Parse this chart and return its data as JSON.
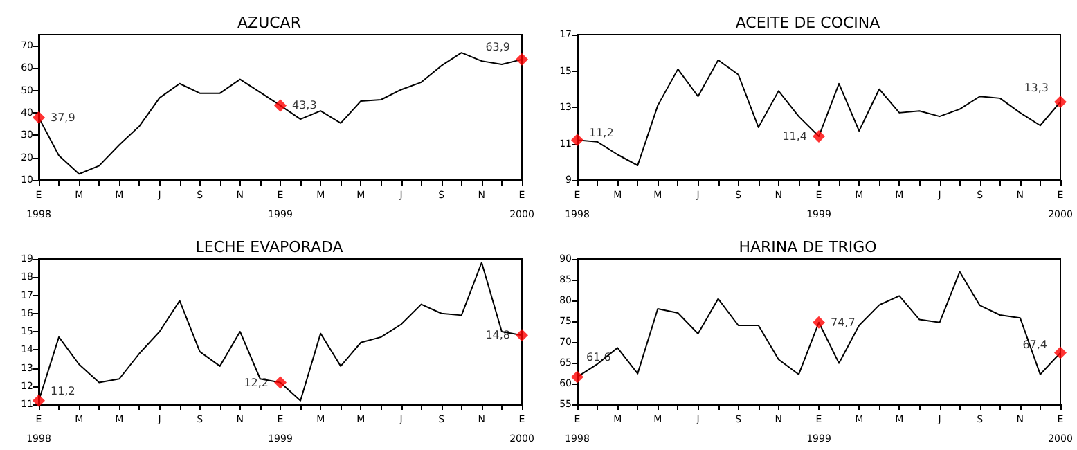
{
  "chart_data": [
    {
      "type": "line",
      "title": "AZUCAR",
      "categories": [
        "E\n1998",
        null,
        "M",
        null,
        "M",
        null,
        "J",
        null,
        "S",
        null,
        "N",
        null,
        "E\n1999",
        null,
        "M",
        null,
        "M",
        null,
        "J",
        null,
        "S",
        null,
        "N",
        null,
        "E\n2000"
      ],
      "ylim": [
        10,
        75
      ],
      "yticks": [
        10,
        20,
        30,
        40,
        50,
        60,
        70
      ],
      "grid": false,
      "series": [
        {
          "type": "line",
          "color": "#000000",
          "marker": "none",
          "values": [
            37.9,
            20.9,
            12.7,
            16.4,
            25.7,
            34.1,
            46.7,
            53.1,
            48.8,
            48.8,
            55.0,
            49.2,
            43.3,
            37.2,
            40.9,
            35.4,
            45.3,
            45.9,
            50.4,
            53.7,
            61.1,
            66.9,
            63.2,
            61.7,
            63.9
          ]
        },
        {
          "type": "scatter",
          "color": "#ff0000",
          "marker": "diamond",
          "values": [
            37.9,
            null,
            null,
            null,
            null,
            null,
            null,
            null,
            null,
            null,
            null,
            null,
            43.3,
            null,
            null,
            null,
            null,
            null,
            null,
            null,
            null,
            null,
            null,
            null,
            63.9
          ],
          "value_labels": [
            "37,9",
            null,
            null,
            null,
            null,
            null,
            null,
            null,
            null,
            null,
            null,
            null,
            "43,3",
            null,
            null,
            null,
            null,
            null,
            null,
            null,
            null,
            null,
            null,
            null,
            "63,9"
          ]
        }
      ]
    },
    {
      "type": "line",
      "title": "ACEITE DE COCINA",
      "categories": [
        "E\n1998",
        null,
        "M",
        null,
        "M",
        null,
        "J",
        null,
        "S",
        null,
        "N",
        null,
        "E\n1999",
        null,
        "M",
        null,
        "M",
        null,
        "J",
        null,
        "S",
        null,
        "N",
        null,
        "E\n2000"
      ],
      "ylim": [
        9,
        17
      ],
      "yticks": [
        9,
        11,
        13,
        15,
        17
      ],
      "grid": false,
      "series": [
        {
          "type": "line",
          "color": "#000000",
          "marker": "none",
          "values": [
            11.2,
            11.1,
            10.4,
            9.8,
            13.1,
            15.1,
            13.6,
            15.6,
            14.8,
            11.9,
            13.9,
            12.5,
            11.4,
            14.3,
            11.7,
            14.0,
            12.7,
            12.8,
            12.5,
            12.9,
            13.6,
            13.5,
            12.7,
            12.0,
            13.3
          ]
        },
        {
          "type": "scatter",
          "color": "#ff0000",
          "marker": "diamond",
          "values": [
            11.2,
            null,
            null,
            null,
            null,
            null,
            null,
            null,
            null,
            null,
            null,
            null,
            11.4,
            null,
            null,
            null,
            null,
            null,
            null,
            null,
            null,
            null,
            null,
            null,
            13.3
          ],
          "value_labels": [
            "11,2",
            null,
            null,
            null,
            null,
            null,
            null,
            null,
            null,
            null,
            null,
            null,
            "11,4",
            null,
            null,
            null,
            null,
            null,
            null,
            null,
            null,
            null,
            null,
            null,
            "13,3"
          ]
        }
      ]
    },
    {
      "type": "line",
      "title": "LECHE EVAPORADA",
      "categories": [
        "E\n1998",
        null,
        "M",
        null,
        "M",
        null,
        "J",
        null,
        "S",
        null,
        "N",
        null,
        "E\n1999",
        null,
        "M",
        null,
        "M",
        null,
        "J",
        null,
        "S",
        null,
        "N",
        null,
        "E\n2000"
      ],
      "ylim": [
        11,
        19
      ],
      "yticks": [
        11,
        12,
        13,
        14,
        15,
        16,
        17,
        18,
        19
      ],
      "grid": false,
      "series": [
        {
          "type": "line",
          "color": "#000000",
          "marker": "none",
          "values": [
            11.2,
            14.7,
            13.2,
            12.2,
            12.4,
            13.8,
            15.0,
            16.7,
            13.9,
            13.1,
            15.0,
            12.4,
            12.2,
            11.2,
            14.9,
            13.1,
            14.4,
            14.7,
            15.4,
            16.5,
            16.0,
            15.9,
            18.8,
            15.0,
            14.8
          ]
        },
        {
          "type": "scatter",
          "color": "#ff0000",
          "marker": "diamond",
          "values": [
            11.2,
            null,
            null,
            null,
            null,
            null,
            null,
            null,
            null,
            null,
            null,
            null,
            12.2,
            null,
            null,
            null,
            null,
            null,
            null,
            null,
            null,
            null,
            null,
            null,
            14.8
          ],
          "value_labels": [
            "11,2",
            null,
            null,
            null,
            null,
            null,
            null,
            null,
            null,
            null,
            null,
            null,
            "12,2",
            null,
            null,
            null,
            null,
            null,
            null,
            null,
            null,
            null,
            null,
            null,
            "14,8"
          ]
        }
      ]
    },
    {
      "type": "line",
      "title": "HARINA DE TRIGO",
      "categories": [
        "E\n1998",
        null,
        "M",
        null,
        "M",
        null,
        "J",
        null,
        "S",
        null,
        "N",
        null,
        "E\n1999",
        null,
        "M",
        null,
        "M",
        null,
        "J",
        null,
        "S",
        null,
        "N",
        null,
        "E\n2000"
      ],
      "ylim": [
        55,
        90
      ],
      "yticks": [
        55,
        60,
        65,
        70,
        75,
        80,
        85,
        90
      ],
      "grid": false,
      "series": [
        {
          "type": "line",
          "color": "#000000",
          "marker": "none",
          "values": [
            61.6,
            64.7,
            68.6,
            62.4,
            78.0,
            77.0,
            72.0,
            80.4,
            74.0,
            74.0,
            65.8,
            62.2,
            74.7,
            64.9,
            74.0,
            78.9,
            81.1,
            75.4,
            74.7,
            86.9,
            78.8,
            76.5,
            75.8,
            62.2,
            67.4
          ]
        },
        {
          "type": "scatter",
          "color": "#ff0000",
          "marker": "diamond",
          "values": [
            61.6,
            null,
            null,
            null,
            null,
            null,
            null,
            null,
            null,
            null,
            null,
            null,
            74.7,
            null,
            null,
            null,
            null,
            null,
            null,
            null,
            null,
            null,
            null,
            null,
            67.4
          ],
          "value_labels": [
            "61,6",
            null,
            null,
            null,
            null,
            null,
            null,
            null,
            null,
            null,
            null,
            null,
            "74,7",
            null,
            null,
            null,
            null,
            null,
            null,
            null,
            null,
            null,
            null,
            null,
            "67,4"
          ]
        }
      ]
    }
  ]
}
